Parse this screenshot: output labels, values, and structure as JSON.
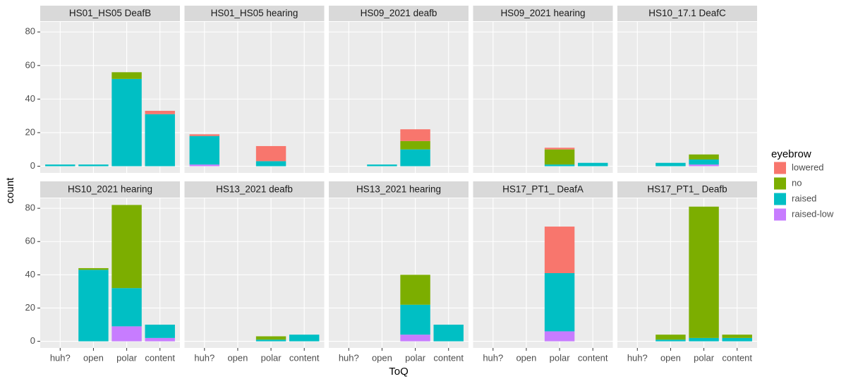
{
  "shared": {
    "x_label": "ToQ",
    "y_label": "count",
    "legend_title": "eyebrow",
    "legend_position": "right"
  },
  "chart_data": [
    {
      "type": "bar",
      "stacked": true,
      "title": "HS01_HS05 DeafB",
      "categories": [
        "huh?",
        "open",
        "polar",
        "content"
      ],
      "ylim": [
        -4,
        86
      ],
      "yticks": [
        0,
        20,
        40,
        60,
        80
      ],
      "grid": true,
      "series": [
        {
          "name": "lowered",
          "color": "#F8766D",
          "values": [
            0,
            0,
            0,
            2
          ]
        },
        {
          "name": "no",
          "color": "#7CAE00",
          "values": [
            0,
            0,
            4,
            0
          ]
        },
        {
          "name": "raised",
          "color": "#00BFC4",
          "values": [
            1,
            1,
            52,
            31
          ]
        },
        {
          "name": "raised-low",
          "color": "#C77CFF",
          "values": [
            0,
            0,
            0,
            0
          ]
        }
      ]
    },
    {
      "type": "bar",
      "stacked": true,
      "title": "HS01_HS05 hearing",
      "categories": [
        "huh?",
        "open",
        "polar",
        "content"
      ],
      "ylim": [
        -4,
        86
      ],
      "yticks": [
        0,
        20,
        40,
        60,
        80
      ],
      "grid": true,
      "series": [
        {
          "name": "lowered",
          "color": "#F8766D",
          "values": [
            1,
            0,
            9,
            0
          ]
        },
        {
          "name": "no",
          "color": "#7CAE00",
          "values": [
            0,
            0,
            0,
            0
          ]
        },
        {
          "name": "raised",
          "color": "#00BFC4",
          "values": [
            17,
            0,
            3,
            0
          ]
        },
        {
          "name": "raised-low",
          "color": "#C77CFF",
          "values": [
            1,
            0,
            0,
            0
          ]
        }
      ]
    },
    {
      "type": "bar",
      "stacked": true,
      "title": "HS09_2021 deafb",
      "categories": [
        "huh?",
        "open",
        "polar",
        "content"
      ],
      "ylim": [
        -4,
        86
      ],
      "yticks": [
        0,
        20,
        40,
        60,
        80
      ],
      "grid": true,
      "series": [
        {
          "name": "lowered",
          "color": "#F8766D",
          "values": [
            0,
            0,
            7,
            0
          ]
        },
        {
          "name": "no",
          "color": "#7CAE00",
          "values": [
            0,
            0,
            5,
            0
          ]
        },
        {
          "name": "raised",
          "color": "#00BFC4",
          "values": [
            0,
            1,
            10,
            0
          ]
        },
        {
          "name": "raised-low",
          "color": "#C77CFF",
          "values": [
            0,
            0,
            0,
            0
          ]
        }
      ]
    },
    {
      "type": "bar",
      "stacked": true,
      "title": "HS09_2021 hearing",
      "categories": [
        "huh?",
        "open",
        "polar",
        "content"
      ],
      "ylim": [
        -4,
        86
      ],
      "yticks": [
        0,
        20,
        40,
        60,
        80
      ],
      "grid": true,
      "series": [
        {
          "name": "lowered",
          "color": "#F8766D",
          "values": [
            0,
            0,
            1,
            0
          ]
        },
        {
          "name": "no",
          "color": "#7CAE00",
          "values": [
            0,
            0,
            9,
            0
          ]
        },
        {
          "name": "raised",
          "color": "#00BFC4",
          "values": [
            0,
            0,
            1,
            2
          ]
        },
        {
          "name": "raised-low",
          "color": "#C77CFF",
          "values": [
            0,
            0,
            0,
            0
          ]
        }
      ]
    },
    {
      "type": "bar",
      "stacked": true,
      "title": "HS10_17.1 DeafC",
      "categories": [
        "huh?",
        "open",
        "polar",
        "content"
      ],
      "ylim": [
        -4,
        86
      ],
      "yticks": [
        0,
        20,
        40,
        60,
        80
      ],
      "grid": true,
      "series": [
        {
          "name": "lowered",
          "color": "#F8766D",
          "values": [
            0,
            0,
            0,
            0
          ]
        },
        {
          "name": "no",
          "color": "#7CAE00",
          "values": [
            0,
            0,
            3,
            0
          ]
        },
        {
          "name": "raised",
          "color": "#00BFC4",
          "values": [
            0,
            2,
            3,
            0
          ]
        },
        {
          "name": "raised-low",
          "color": "#C77CFF",
          "values": [
            0,
            0,
            1,
            0
          ]
        }
      ]
    },
    {
      "type": "bar",
      "stacked": true,
      "title": "HS10_2021 hearing",
      "categories": [
        "huh?",
        "open",
        "polar",
        "content"
      ],
      "ylim": [
        -4,
        86
      ],
      "yticks": [
        0,
        20,
        40,
        60,
        80
      ],
      "grid": true,
      "series": [
        {
          "name": "lowered",
          "color": "#F8766D",
          "values": [
            0,
            0,
            0,
            0
          ]
        },
        {
          "name": "no",
          "color": "#7CAE00",
          "values": [
            0,
            1,
            50,
            0
          ]
        },
        {
          "name": "raised",
          "color": "#00BFC4",
          "values": [
            0,
            43,
            23,
            8
          ]
        },
        {
          "name": "raised-low",
          "color": "#C77CFF",
          "values": [
            0,
            0,
            9,
            2
          ]
        }
      ]
    },
    {
      "type": "bar",
      "stacked": true,
      "title": "HS13_2021 deafb",
      "categories": [
        "huh?",
        "open",
        "polar",
        "content"
      ],
      "ylim": [
        -4,
        86
      ],
      "yticks": [
        0,
        20,
        40,
        60,
        80
      ],
      "grid": true,
      "series": [
        {
          "name": "lowered",
          "color": "#F8766D",
          "values": [
            0,
            0,
            0,
            0
          ]
        },
        {
          "name": "no",
          "color": "#7CAE00",
          "values": [
            0,
            0,
            2,
            0
          ]
        },
        {
          "name": "raised",
          "color": "#00BFC4",
          "values": [
            0,
            0,
            1,
            4
          ]
        },
        {
          "name": "raised-low",
          "color": "#C77CFF",
          "values": [
            0,
            0,
            0,
            0
          ]
        }
      ]
    },
    {
      "type": "bar",
      "stacked": true,
      "title": "HS13_2021 hearing",
      "categories": [
        "huh?",
        "open",
        "polar",
        "content"
      ],
      "ylim": [
        -4,
        86
      ],
      "yticks": [
        0,
        20,
        40,
        60,
        80
      ],
      "grid": true,
      "series": [
        {
          "name": "lowered",
          "color": "#F8766D",
          "values": [
            0,
            0,
            0,
            0
          ]
        },
        {
          "name": "no",
          "color": "#7CAE00",
          "values": [
            0,
            0,
            18,
            0
          ]
        },
        {
          "name": "raised",
          "color": "#00BFC4",
          "values": [
            0,
            0,
            18,
            10
          ]
        },
        {
          "name": "raised-low",
          "color": "#C77CFF",
          "values": [
            0,
            0,
            4,
            0
          ]
        }
      ]
    },
    {
      "type": "bar",
      "stacked": true,
      "title": "HS17_PT1_ DeafA",
      "categories": [
        "huh?",
        "open",
        "polar",
        "content"
      ],
      "ylim": [
        -4,
        86
      ],
      "yticks": [
        0,
        20,
        40,
        60,
        80
      ],
      "grid": true,
      "series": [
        {
          "name": "lowered",
          "color": "#F8766D",
          "values": [
            0,
            0,
            28,
            0
          ]
        },
        {
          "name": "no",
          "color": "#7CAE00",
          "values": [
            0,
            0,
            0,
            0
          ]
        },
        {
          "name": "raised",
          "color": "#00BFC4",
          "values": [
            0,
            0,
            35,
            0
          ]
        },
        {
          "name": "raised-low",
          "color": "#C77CFF",
          "values": [
            0,
            0,
            6,
            0
          ]
        }
      ]
    },
    {
      "type": "bar",
      "stacked": true,
      "title": "HS17_PT1_ Deafb",
      "categories": [
        "huh?",
        "open",
        "polar",
        "content"
      ],
      "ylim": [
        -4,
        86
      ],
      "yticks": [
        0,
        20,
        40,
        60,
        80
      ],
      "grid": true,
      "series": [
        {
          "name": "lowered",
          "color": "#F8766D",
          "values": [
            0,
            0,
            0,
            0
          ]
        },
        {
          "name": "no",
          "color": "#7CAE00",
          "values": [
            0,
            3,
            79,
            2
          ]
        },
        {
          "name": "raised",
          "color": "#00BFC4",
          "values": [
            0,
            1,
            2,
            2
          ]
        },
        {
          "name": "raised-low",
          "color": "#C77CFF",
          "values": [
            0,
            0,
            0,
            0
          ]
        }
      ]
    }
  ]
}
